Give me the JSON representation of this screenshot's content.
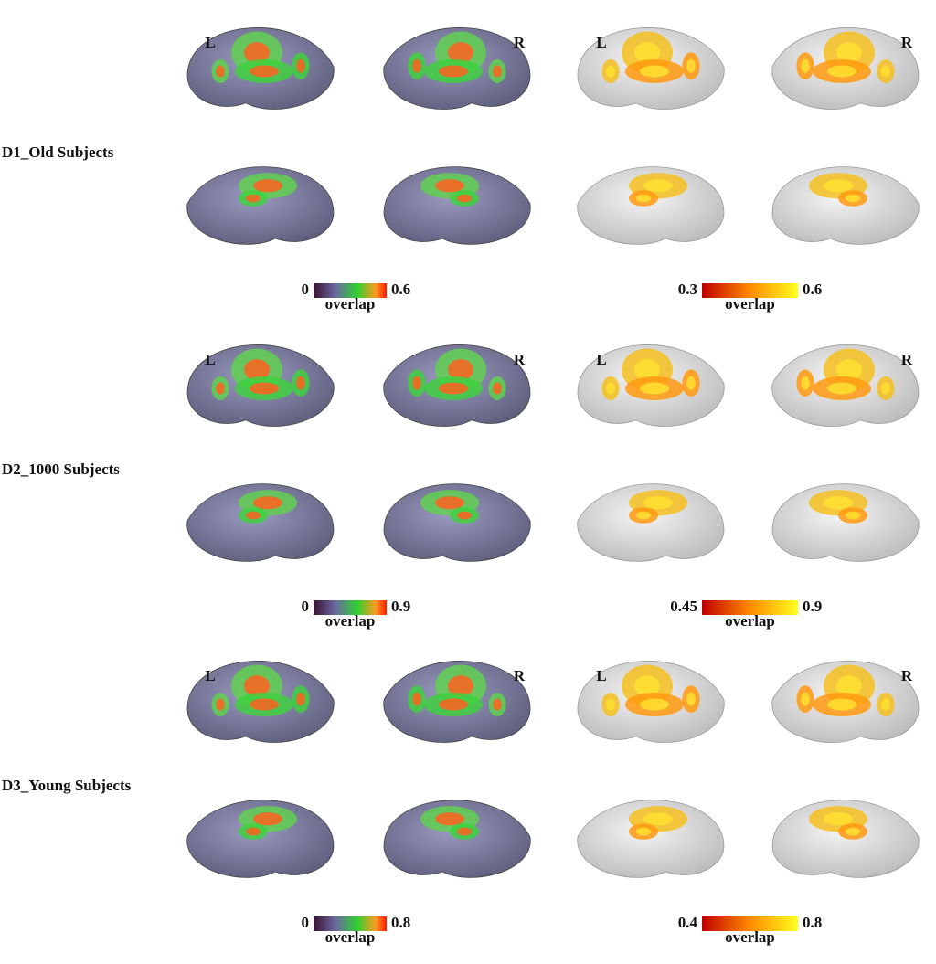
{
  "rows": [
    {
      "label": "D1_Old Subjects",
      "left": {
        "hemi_left": "L",
        "hemi_right": "R",
        "colorbar": {
          "min": 0,
          "max": 0.6,
          "label": "overlap"
        }
      },
      "right": {
        "hemi_left": "L",
        "hemi_right": "R",
        "colorbar": {
          "min": 0.3,
          "max": 0.6,
          "label": "overlap"
        }
      }
    },
    {
      "label": "D2_1000 Subjects",
      "left": {
        "hemi_left": "L",
        "hemi_right": "R",
        "colorbar": {
          "min": 0,
          "max": 0.9,
          "label": "overlap"
        }
      },
      "right": {
        "hemi_left": "L",
        "hemi_right": "R",
        "colorbar": {
          "min": 0.45,
          "max": 0.9,
          "label": "overlap"
        }
      }
    },
    {
      "label": "D3_Young Subjects",
      "left": {
        "hemi_left": "L",
        "hemi_right": "R",
        "colorbar": {
          "min": 0,
          "max": 0.8,
          "label": "overlap"
        }
      },
      "right": {
        "hemi_left": "L",
        "hemi_right": "R",
        "colorbar": {
          "min": 0.4,
          "max": 0.8,
          "label": "overlap"
        }
      }
    }
  ]
}
